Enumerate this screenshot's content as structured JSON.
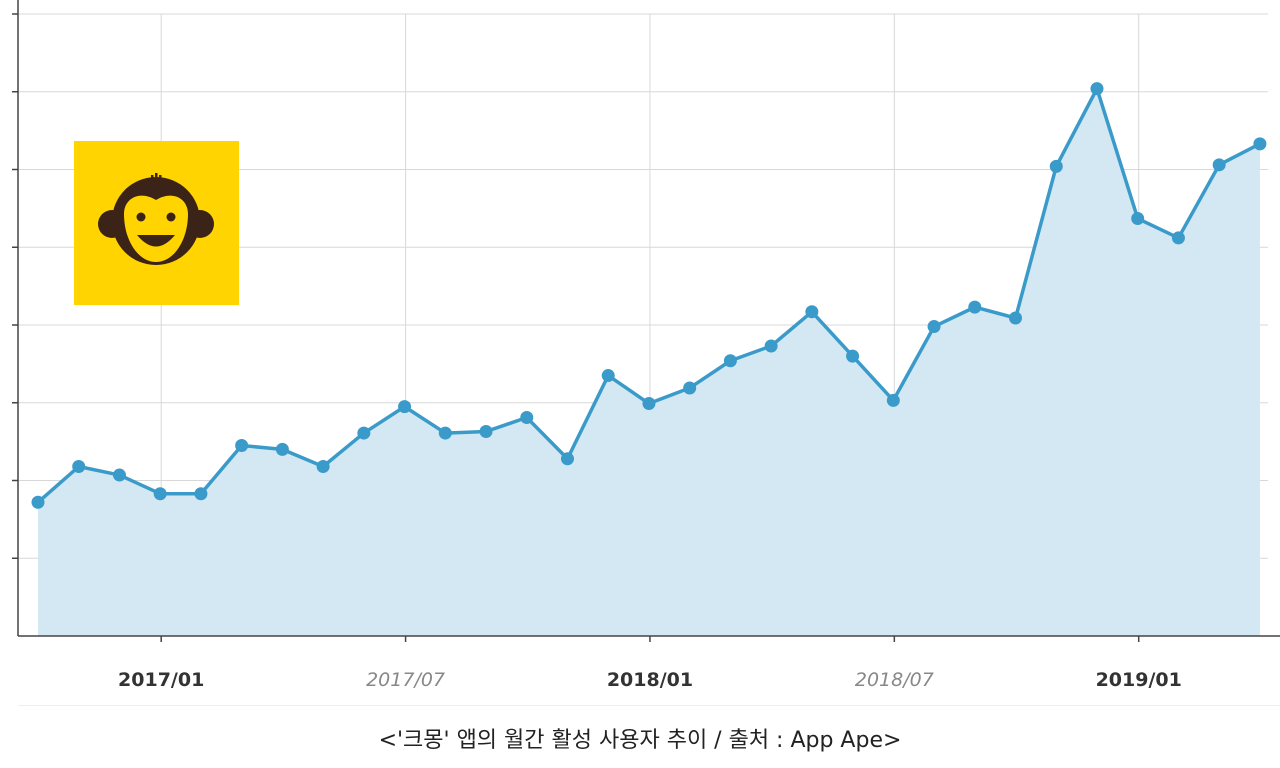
{
  "caption": "<'크몽' 앱의 월간 활성 사용자 추이 / 출처 : App Ape>",
  "logo": {
    "icon": "monkey-face-icon",
    "bg_color": "#FFD400",
    "face_color": "#3B2417"
  },
  "chart_data": {
    "type": "area",
    "title": "",
    "xlabel": "",
    "ylabel": "",
    "x": [
      "2016/10",
      "2016/11",
      "2016/12",
      "2017/01",
      "2017/02",
      "2017/03",
      "2017/04",
      "2017/05",
      "2017/06",
      "2017/07",
      "2017/08",
      "2017/09",
      "2017/10",
      "2017/11",
      "2017/12",
      "2018/01",
      "2018/02",
      "2018/03",
      "2018/04",
      "2018/05",
      "2018/06",
      "2018/07",
      "2018/08",
      "2018/09",
      "2018/10",
      "2018/11",
      "2018/12",
      "2019/01",
      "2019/02",
      "2019/03",
      "2019/04"
    ],
    "x_ticks": [
      {
        "label": "2017/01",
        "style": "bold"
      },
      {
        "label": "2017/07",
        "style": "italic"
      },
      {
        "label": "2018/01",
        "style": "bold"
      },
      {
        "label": "2018/07",
        "style": "italic"
      },
      {
        "label": "2019/01",
        "style": "bold"
      }
    ],
    "series": [
      {
        "values": [
          1.72,
          2.18,
          2.07,
          1.83,
          1.83,
          2.45,
          2.4,
          2.18,
          2.61,
          2.95,
          2.61,
          2.63,
          2.81,
          2.28,
          3.35,
          2.99,
          3.19,
          3.54,
          3.73,
          4.17,
          3.6,
          3.03,
          3.98,
          4.23,
          4.09,
          6.04,
          7.04,
          5.37,
          5.12,
          6.06,
          6.33
        ]
      }
    ],
    "ylim": [
      0,
      8
    ],
    "y_gridlines": 8,
    "y_tick_labels_visible": false,
    "grid": true,
    "line_color": "#3A9AC9",
    "fill_color": "#D3E8F2"
  }
}
